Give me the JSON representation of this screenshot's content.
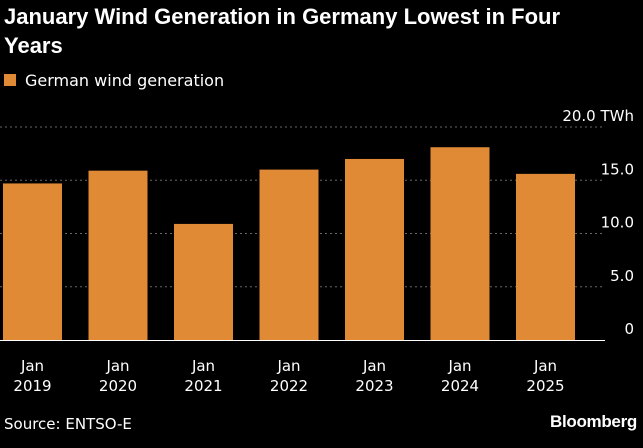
{
  "chart_data": {
    "type": "bar",
    "title": "January Wind Generation in Germany Lowest in Four Years",
    "legend": [
      {
        "label": "German wind generation",
        "color": "#e08a36"
      }
    ],
    "categories": [
      [
        "Jan",
        "2019"
      ],
      [
        "Jan",
        "2020"
      ],
      [
        "Jan",
        "2021"
      ],
      [
        "Jan",
        "2022"
      ],
      [
        "Jan",
        "2023"
      ],
      [
        "Jan",
        "2024"
      ],
      [
        "Jan",
        "2025"
      ]
    ],
    "series": [
      {
        "name": "German wind generation",
        "values": [
          14.7,
          15.9,
          10.9,
          16.0,
          17.0,
          18.1,
          15.6
        ]
      }
    ],
    "ylim": [
      0,
      20
    ],
    "yticks": [
      {
        "value": 0,
        "label": "0"
      },
      {
        "value": 5,
        "label": "5.0"
      },
      {
        "value": 10,
        "label": "10.0"
      },
      {
        "value": 15,
        "label": "15.0"
      },
      {
        "value": 20,
        "label": "20.0 TWh"
      }
    ],
    "ylabel": "TWh",
    "xlabel": "",
    "grid": true,
    "source": "Source: ENTSO-E",
    "brand": "Bloomberg",
    "colors": {
      "background": "#000000",
      "bar": "#e08a36",
      "grid": "#666666",
      "text": "#ffffff"
    }
  }
}
